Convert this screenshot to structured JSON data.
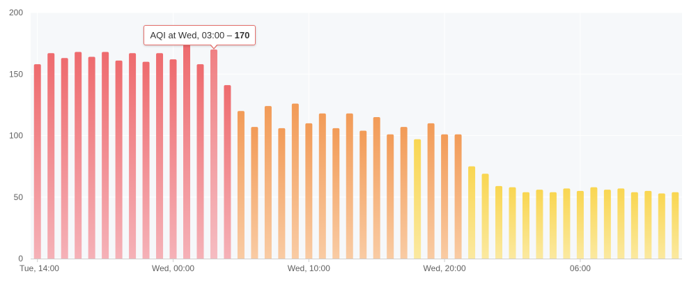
{
  "chart_data": {
    "type": "bar",
    "title": "",
    "xlabel": "",
    "ylabel": "",
    "ylim": [
      0,
      200
    ],
    "yticks": [
      0,
      50,
      100,
      150,
      200
    ],
    "x_tick_labels": [
      {
        "bar": 0,
        "label": "Tue, 14:00"
      },
      {
        "bar": 10,
        "label": "Wed, 00:00"
      },
      {
        "bar": 20,
        "label": "Wed, 10:00"
      },
      {
        "bar": 30,
        "label": "Wed, 20:00"
      },
      {
        "bar": 40,
        "label": "06:00"
      }
    ],
    "categories": [
      "Tue, 14:00",
      "Tue, 15:00",
      "Tue, 16:00",
      "Tue, 17:00",
      "Tue, 18:00",
      "Tue, 19:00",
      "Tue, 20:00",
      "Tue, 21:00",
      "Tue, 22:00",
      "Tue, 23:00",
      "Wed, 00:00",
      "Wed, 01:00",
      "Wed, 02:00",
      "Wed, 03:00",
      "Wed, 04:00",
      "Wed, 05:00",
      "Wed, 06:00",
      "Wed, 07:00",
      "Wed, 08:00",
      "Wed, 09:00",
      "Wed, 10:00",
      "Wed, 11:00",
      "Wed, 12:00",
      "Wed, 13:00",
      "Wed, 14:00",
      "Wed, 15:00",
      "Wed, 16:00",
      "Wed, 17:00",
      "Wed, 18:00",
      "Wed, 19:00",
      "Wed, 20:00",
      "Wed, 21:00",
      "Wed, 22:00",
      "Wed, 23:00",
      "Thu, 00:00",
      "Thu, 01:00",
      "Thu, 02:00",
      "Thu, 03:00",
      "Thu, 04:00",
      "Thu, 05:00",
      "Thu, 06:00",
      "Thu, 07:00",
      "Thu, 08:00",
      "Thu, 09:00",
      "Thu, 10:00",
      "Thu, 11:00",
      "Thu, 12:00",
      "Thu, 13:00"
    ],
    "values": [
      158,
      167,
      163,
      168,
      164,
      168,
      161,
      167,
      160,
      167,
      162,
      174,
      158,
      170,
      141,
      120,
      107,
      124,
      106,
      126,
      110,
      118,
      106,
      118,
      104,
      115,
      101,
      107,
      97,
      110,
      101,
      101,
      75,
      69,
      59,
      58,
      54,
      56,
      54,
      57,
      55,
      58,
      56,
      57,
      54,
      55,
      53,
      54
    ],
    "colors": {
      "high_top": "#ee6b6e",
      "high_bottom": "#f5b1b7",
      "mid_top": "#f29b57",
      "mid_bottom": "#f9cba3",
      "low_top": "#f9d651",
      "low_bottom": "#fbe9a0",
      "plot_background": "#f6f8fa",
      "axis_line": "#cccccc",
      "gridline": "#ffffff"
    },
    "grid": true,
    "highlighted_index": 13,
    "tooltip": {
      "prefix": "AQI at Wed, 03:00 – ",
      "value": "170",
      "border_color": "#e4706c"
    }
  }
}
